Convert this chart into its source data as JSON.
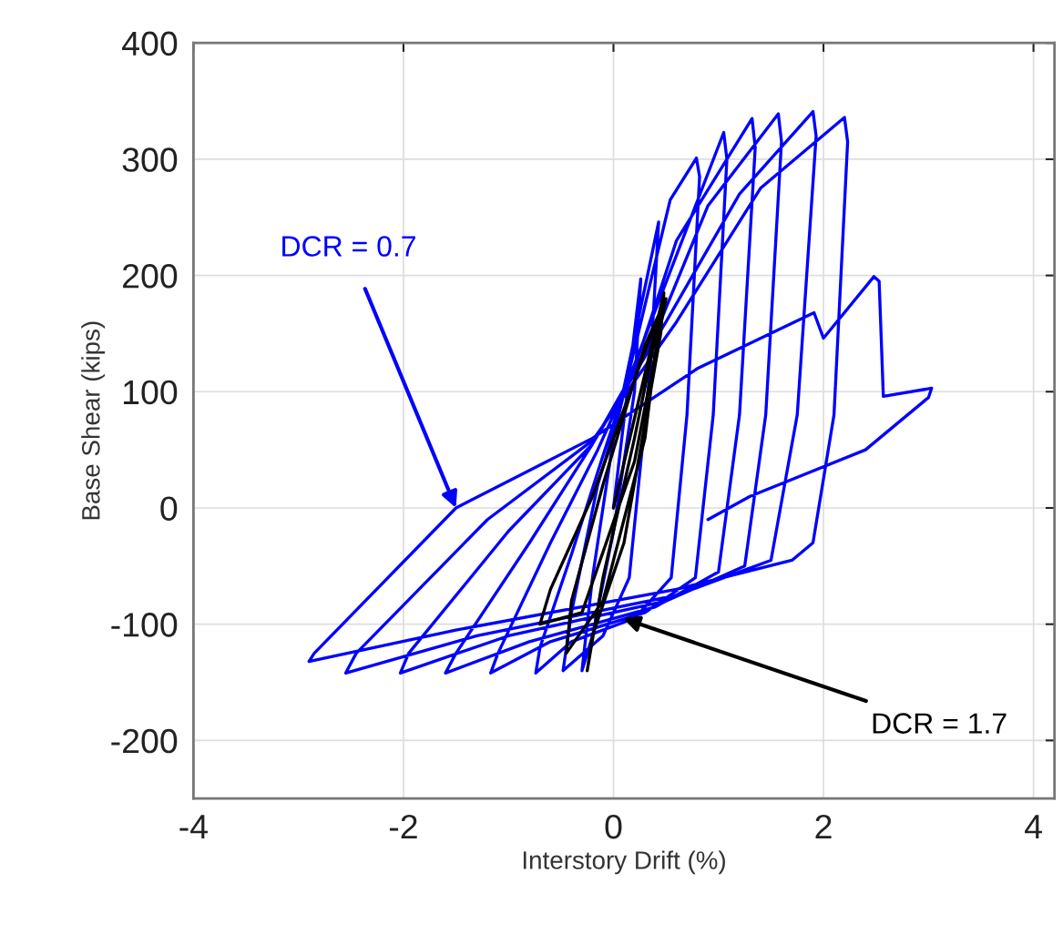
{
  "chart_data": {
    "type": "line",
    "xlabel": "Interstory Drift (%)",
    "ylabel": "Base Shear (kips)",
    "xlim": [
      -4,
      4.2
    ],
    "ylim": [
      -250,
      400
    ],
    "xticks": [
      -4,
      -2,
      0,
      2,
      4
    ],
    "yticks": [
      -200,
      -100,
      0,
      100,
      200,
      300,
      400
    ],
    "grid": true,
    "line_style": "solid",
    "series": [
      {
        "color": "#0000ff",
        "x": [
          0,
          0.26,
          0.2,
          0,
          -0.2,
          -0.3,
          -0.2,
          0,
          0.43,
          0.35,
          0.15,
          -0.1,
          -0.48,
          -0.4,
          -0.15,
          0.05,
          0.54,
          0.79,
          0.82,
          0.7,
          0.55,
          0.2,
          -0.4,
          -0.74,
          -0.7,
          -0.4,
          -0.1,
          0.1,
          1.05,
          1.08,
          0.95,
          0.78,
          0.3,
          -0.6,
          -1.17,
          -1.1,
          -0.6,
          -0.15,
          0.2,
          0.6,
          1.32,
          1.35,
          1.2,
          1.0,
          0.4,
          -0.8,
          -1.6,
          -1.5,
          -0.8,
          -0.2,
          0.4,
          0.9,
          1.57,
          1.6,
          1.45,
          1.25,
          0.5,
          -1.0,
          -2.03,
          -1.95,
          -1.0,
          -0.2,
          0.5,
          1.2,
          1.9,
          1.93,
          1.75,
          1.5,
          0.6,
          -1.3,
          -2.55,
          -2.45,
          -1.2,
          -0.2,
          0.6,
          1.4,
          2.2,
          2.23,
          2.1,
          1.9,
          1.7,
          0.6,
          -1.5,
          -2.9,
          -2.85,
          -1.5,
          -0.2,
          0.8,
          1.91,
          2.0,
          2.48,
          2.53,
          2.57,
          3.03,
          3.0,
          2.4,
          1.3,
          0.9
        ],
        "values": [
          0,
          197,
          100,
          -20,
          -110,
          -140,
          -60,
          60,
          246,
          120,
          -60,
          -110,
          -140,
          -90,
          20,
          80,
          265,
          301,
          285,
          80,
          -60,
          -95,
          -115,
          -142,
          -120,
          -40,
          45,
          100,
          323,
          300,
          80,
          -60,
          -90,
          -115,
          -142,
          -125,
          -30,
          50,
          120,
          230,
          335,
          310,
          80,
          -55,
          -85,
          -115,
          -142,
          -125,
          -30,
          55,
          150,
          260,
          339,
          315,
          80,
          -50,
          -80,
          -110,
          -142,
          -125,
          -20,
          55,
          160,
          270,
          341,
          320,
          80,
          -45,
          -75,
          -110,
          -142,
          -125,
          -10,
          58,
          160,
          275,
          336,
          315,
          80,
          -30,
          -45,
          -70,
          -105,
          -132,
          -125,
          0,
          60,
          120,
          168,
          146,
          199,
          195,
          96,
          103,
          95,
          50,
          10,
          -10
        ]
      },
      {
        "color": "#000000",
        "x": [
          0,
          0.48,
          0.45,
          0.1,
          -0.2,
          -0.25,
          -0.1,
          0.2,
          0.45,
          0.3,
          -0.1,
          -0.45,
          -0.4,
          -0.1,
          0.3,
          0.5,
          0.2,
          -0.3,
          -0.7,
          -0.6,
          -0.2,
          0.4
        ],
        "values": [
          0,
          185,
          150,
          -30,
          -110,
          -140,
          -60,
          60,
          170,
          60,
          -80,
          -125,
          -80,
          20,
          140,
          180,
          40,
          -90,
          -100,
          -70,
          10,
          160
        ]
      }
    ],
    "annotations": [
      {
        "text": "DCR = 0.7",
        "x": -1.5,
        "y": 0
      },
      {
        "text": "DCR = 1.7",
        "x": 0.09,
        "y": -95
      }
    ]
  }
}
